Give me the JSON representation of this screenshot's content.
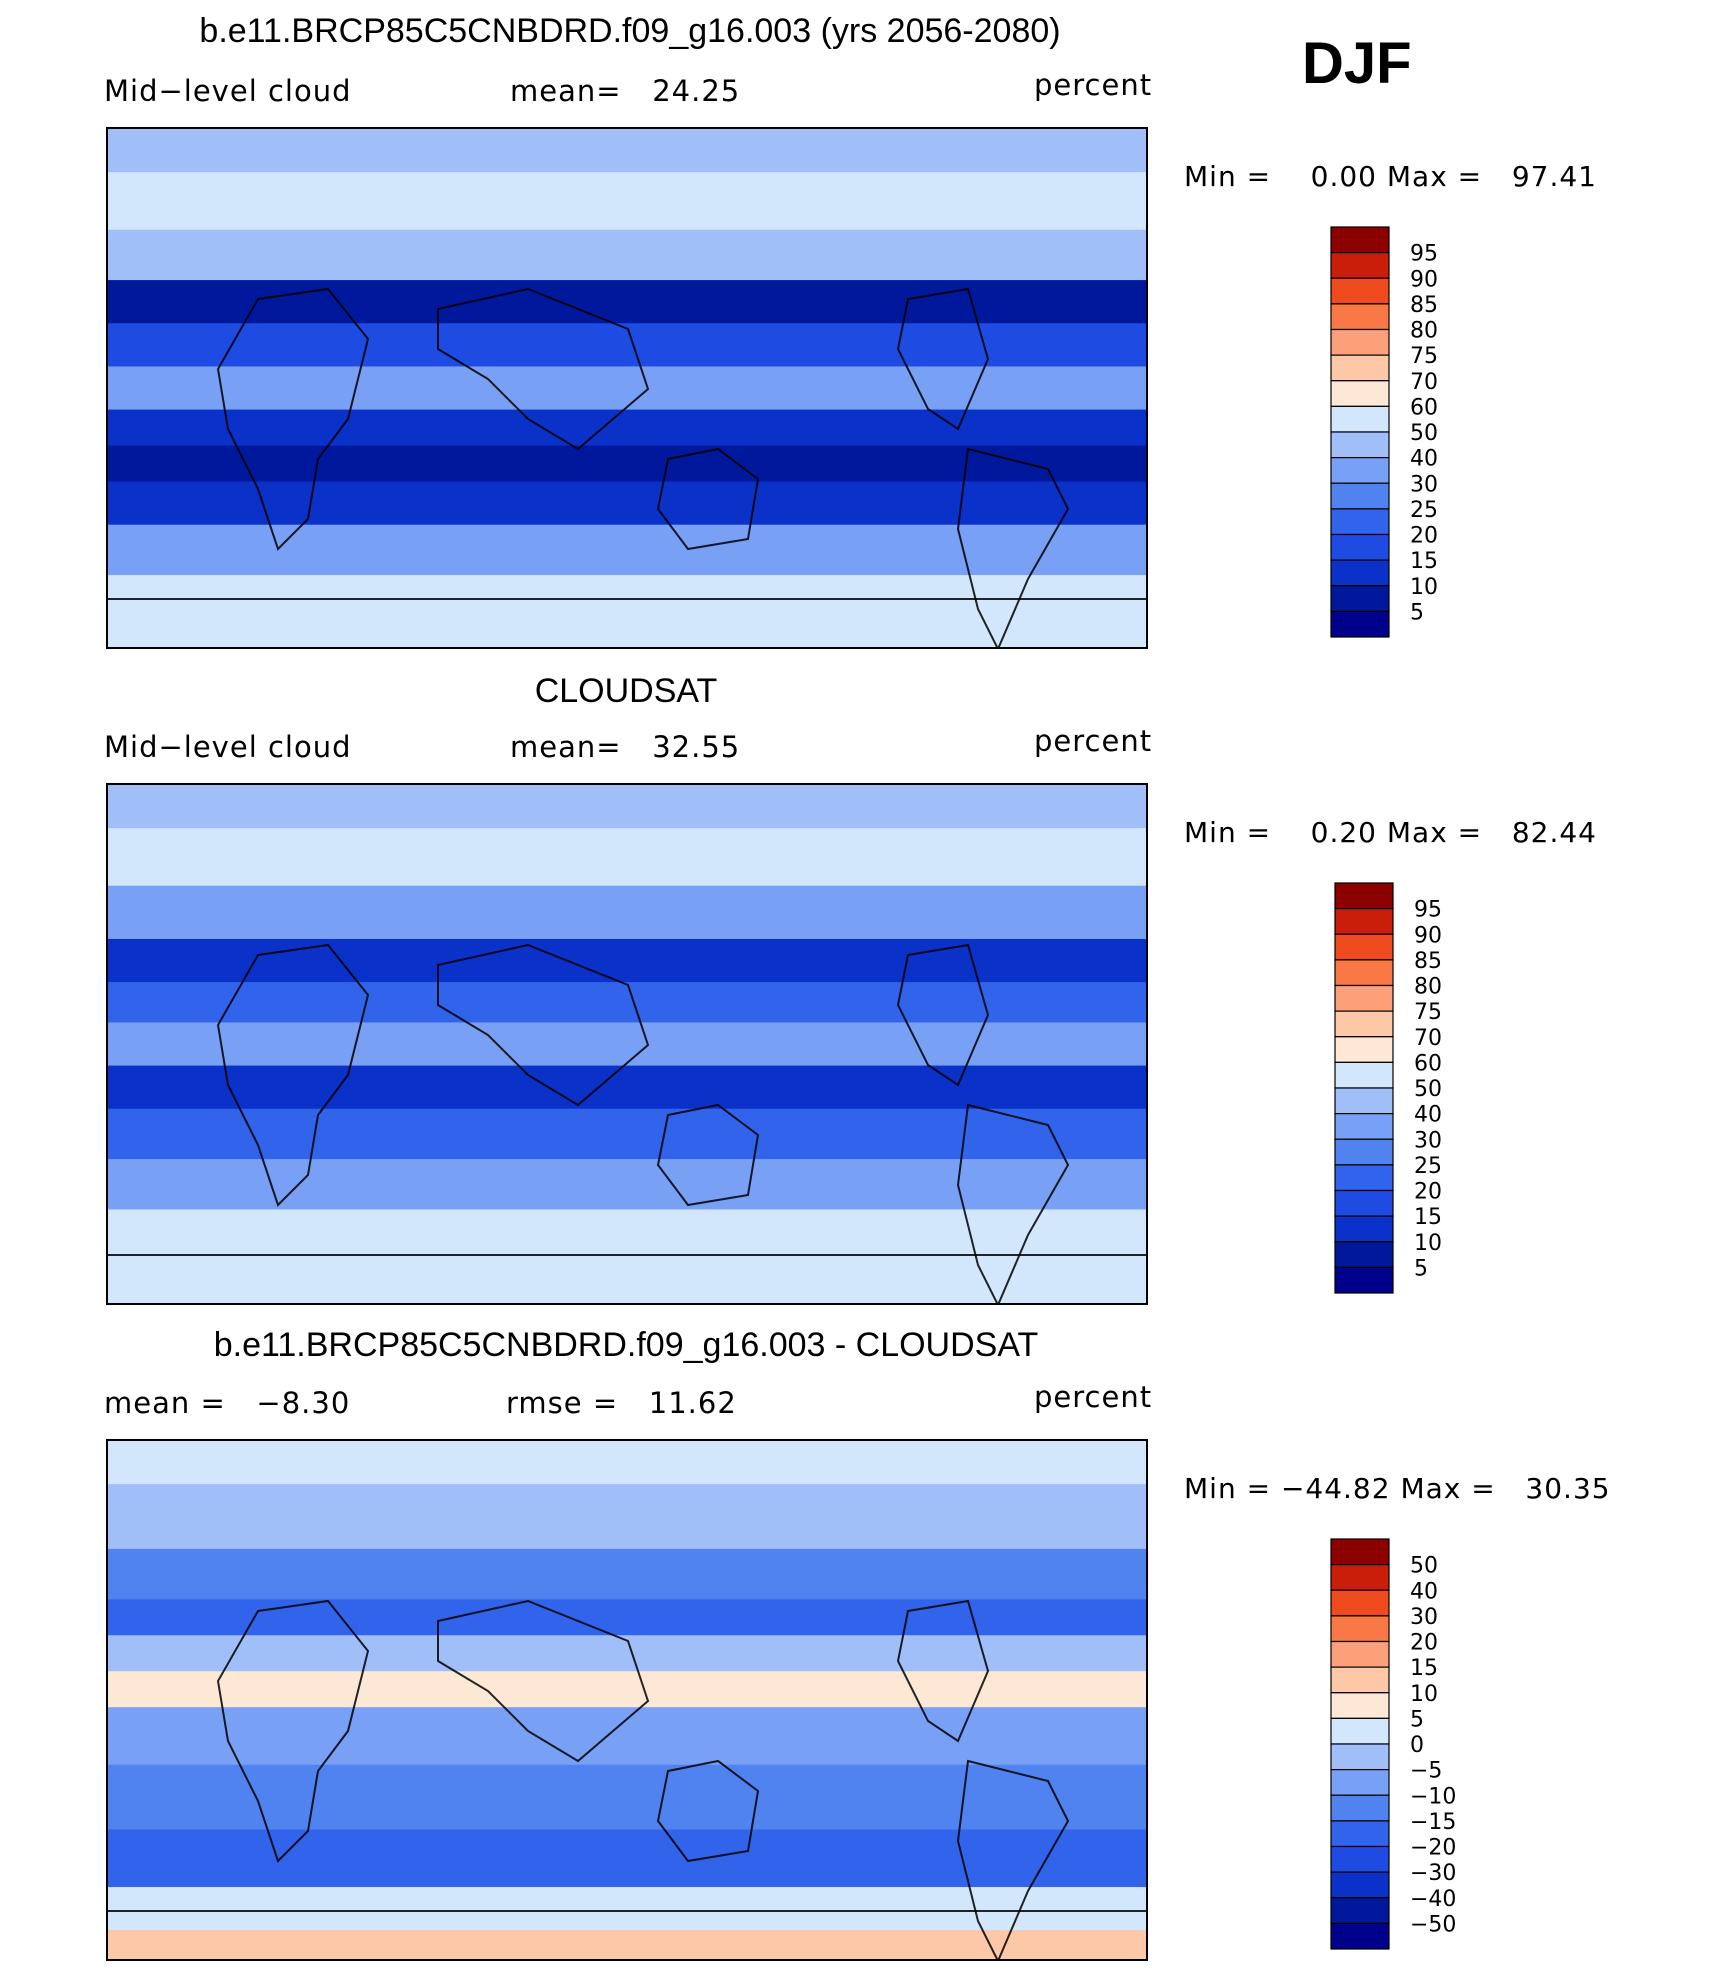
{
  "season": "DJF",
  "colors": {
    "abs_scale": [
      "#00008c",
      "#00189b",
      "#0a32c8",
      "#1e4be1",
      "#3264eb",
      "#5082f0",
      "#78a0f5",
      "#a0bef8",
      "#d2e6fc",
      "#fde8d6",
      "#fcc8a8",
      "#fca07a",
      "#fa7846",
      "#f04b1e",
      "#c81e0a",
      "#8c0000"
    ],
    "diff_scale": [
      "#00008c",
      "#00189b",
      "#0a32c8",
      "#1e4be1",
      "#3264eb",
      "#5082f0",
      "#78a0f5",
      "#a0bef8",
      "#d2e6fc",
      "#fde8d6",
      "#fcc8a8",
      "#fca07a",
      "#fa7846",
      "#f04b1e",
      "#c81e0a",
      "#8c0000"
    ]
  },
  "chart_data": [
    {
      "type": "heatmap",
      "title": "b.e11.BRCP85C5CNBDRD.f09_g16.003 (yrs 2056-2080)",
      "left_label": "Mid−level cloud",
      "center_label": "mean=   24.25",
      "units": "percent",
      "minmax": "Min =    0.00 Max =   97.41",
      "mean": 24.25,
      "min": 0.0,
      "max": 97.41,
      "levels": [
        "95",
        "90",
        "85",
        "80",
        "75",
        "70",
        "60",
        "50",
        "40",
        "30",
        "25",
        "20",
        "15",
        "10",
        "5"
      ],
      "zones": [
        {
          "lat": 85,
          "value": 45
        },
        {
          "lat": 65,
          "value": 50
        },
        {
          "lat": 45,
          "value": 40
        },
        {
          "lat": 30,
          "value": 8
        },
        {
          "lat": 15,
          "value": 18
        },
        {
          "lat": 0,
          "value": 30
        },
        {
          "lat": -15,
          "value": 12
        },
        {
          "lat": -25,
          "value": 5
        },
        {
          "lat": -40,
          "value": 12
        },
        {
          "lat": -55,
          "value": 35
        },
        {
          "lat": -75,
          "value": 50
        }
      ]
    },
    {
      "type": "heatmap",
      "title": "CLOUDSAT",
      "left_label": "Mid−level cloud",
      "center_label": "mean=   32.55",
      "units": "percent",
      "minmax": "Min =    0.20 Max =   82.44",
      "mean": 32.55,
      "min": 0.2,
      "max": 82.44,
      "levels": [
        "95",
        "90",
        "85",
        "80",
        "75",
        "70",
        "60",
        "50",
        "40",
        "30",
        "25",
        "20",
        "15",
        "10",
        "5"
      ],
      "zones": [
        {
          "lat": 85,
          "value": 45
        },
        {
          "lat": 65,
          "value": 52
        },
        {
          "lat": 45,
          "value": 38
        },
        {
          "lat": 28,
          "value": 10
        },
        {
          "lat": 15,
          "value": 22
        },
        {
          "lat": 0,
          "value": 35
        },
        {
          "lat": -15,
          "value": 12
        },
        {
          "lat": -30,
          "value": 20
        },
        {
          "lat": -50,
          "value": 30
        },
        {
          "lat": -65,
          "value": 50
        },
        {
          "lat": -80,
          "value": 55
        }
      ]
    },
    {
      "type": "heatmap",
      "title": "b.e11.BRCP85C5CNBDRD.f09_g16.003 - CLOUDSAT",
      "left_label": "mean =   −8.30",
      "center_label": "rmse =   11.62",
      "units": "percent",
      "minmax": "Min = −44.82 Max =   30.35",
      "mean": -8.3,
      "rmse": 11.62,
      "min": -44.82,
      "max": 30.35,
      "levels": [
        "50",
        "40",
        "30",
        "20",
        "15",
        "10",
        "5",
        "0",
        "−5",
        "−10",
        "−15",
        "−20",
        "−30",
        "−40",
        "−50"
      ],
      "zones": [
        {
          "lat": 85,
          "value": 3
        },
        {
          "lat": 65,
          "value": -5
        },
        {
          "lat": 40,
          "value": -12
        },
        {
          "lat": 30,
          "value": -20
        },
        {
          "lat": 15,
          "value": -3
        },
        {
          "lat": 5,
          "value": 5
        },
        {
          "lat": -10,
          "value": -8
        },
        {
          "lat": -35,
          "value": -12
        },
        {
          "lat": -55,
          "value": -18
        },
        {
          "lat": -75,
          "value": 3
        },
        {
          "lat": -85,
          "value": 12
        }
      ]
    }
  ]
}
